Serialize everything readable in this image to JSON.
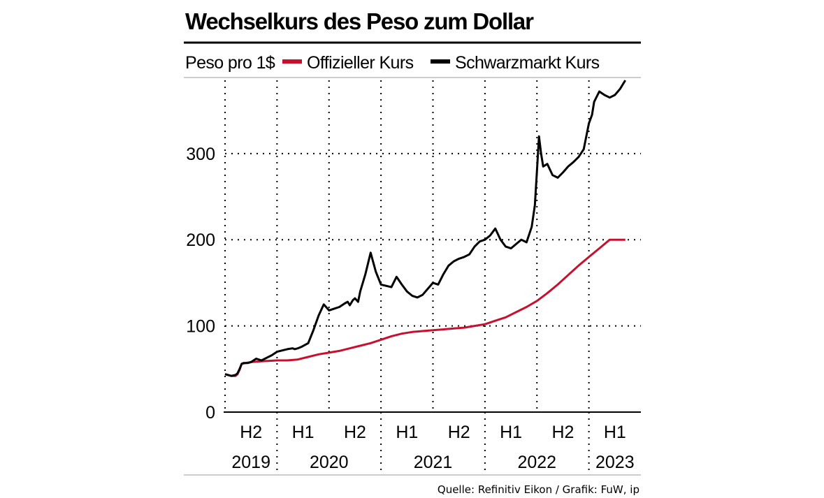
{
  "chart_data": {
    "type": "line",
    "title": "Wechselkurs des Peso zum Dollar",
    "ylabel": "Peso pro 1$",
    "xlabel": "",
    "ylim": [
      0,
      385
    ],
    "yticks": [
      0,
      100,
      200,
      300
    ],
    "xlim": [
      2019.5,
      2023.5
    ],
    "half_year_labels": [
      {
        "label": "H2",
        "x": 2019.75
      },
      {
        "label": "H1",
        "x": 2020.25
      },
      {
        "label": "H2",
        "x": 2020.75
      },
      {
        "label": "H1",
        "x": 2021.25
      },
      {
        "label": "H2",
        "x": 2021.75
      },
      {
        "label": "H1",
        "x": 2022.25
      },
      {
        "label": "H2",
        "x": 2022.75
      },
      {
        "label": "H1",
        "x": 2023.25
      }
    ],
    "year_labels": [
      {
        "label": "2019",
        "x": 2019.75
      },
      {
        "label": "2020",
        "x": 2020.5
      },
      {
        "label": "2021",
        "x": 2021.5
      },
      {
        "label": "2022",
        "x": 2022.5
      },
      {
        "label": "2023",
        "x": 2023.25
      }
    ],
    "year_boundaries": [
      2020.0,
      2021.0,
      2022.0,
      2023.0
    ],
    "legend_position": "top",
    "series": [
      {
        "name": "Offizieller Kurs",
        "color": "#c8102e",
        "x": [
          2019.5,
          2019.56,
          2019.6,
          2019.62,
          2019.64,
          2019.66,
          2019.7,
          2019.75,
          2019.85,
          2020.0,
          2020.1,
          2020.2,
          2020.3,
          2020.4,
          2020.5,
          2020.6,
          2020.7,
          2020.8,
          2020.9,
          2021.0,
          2021.1,
          2021.2,
          2021.3,
          2021.4,
          2021.5,
          2021.6,
          2021.7,
          2021.8,
          2021.9,
          2022.0,
          2022.1,
          2022.2,
          2022.3,
          2022.4,
          2022.5,
          2022.6,
          2022.7,
          2022.8,
          2022.9,
          2023.0,
          2023.1,
          2023.2,
          2023.3,
          2023.35
        ],
        "values": [
          44,
          42,
          42,
          44,
          49,
          56,
          57,
          58,
          59,
          60,
          60,
          61,
          64,
          67,
          69,
          71,
          74,
          77,
          80,
          84,
          88,
          91,
          93,
          94,
          95,
          96,
          97,
          98,
          100,
          102,
          106,
          110,
          116,
          122,
          129,
          138,
          148,
          159,
          170,
          180,
          190,
          200,
          200,
          200
        ]
      },
      {
        "name": "Schwarzmarkt Kurs",
        "color": "#000000",
        "x": [
          2019.5,
          2019.56,
          2019.6,
          2019.62,
          2019.64,
          2019.66,
          2019.68,
          2019.72,
          2019.75,
          2019.8,
          2019.85,
          2019.9,
          2019.95,
          2020.0,
          2020.1,
          2020.15,
          2020.17,
          2020.2,
          2020.24,
          2020.3,
          2020.35,
          2020.4,
          2020.45,
          2020.5,
          2020.55,
          2020.6,
          2020.65,
          2020.68,
          2020.7,
          2020.73,
          2020.75,
          2020.78,
          2020.8,
          2020.85,
          2020.9,
          2020.95,
          2021.0,
          2021.1,
          2021.15,
          2021.2,
          2021.25,
          2021.3,
          2021.35,
          2021.4,
          2021.5,
          2021.55,
          2021.6,
          2021.65,
          2021.7,
          2021.75,
          2021.8,
          2021.85,
          2021.9,
          2021.95,
          2022.0,
          2022.05,
          2022.1,
          2022.15,
          2022.2,
          2022.25,
          2022.3,
          2022.35,
          2022.4,
          2022.45,
          2022.48,
          2022.5,
          2022.52,
          2022.54,
          2022.56,
          2022.6,
          2022.65,
          2022.7,
          2022.75,
          2022.8,
          2022.85,
          2022.9,
          2022.95,
          2023.0,
          2023.03,
          2023.05,
          2023.1,
          2023.15,
          2023.2,
          2023.25,
          2023.3,
          2023.35
        ],
        "values": [
          44,
          42,
          43,
          45,
          50,
          56,
          57,
          57,
          58,
          62,
          60,
          63,
          66,
          70,
          73,
          74,
          73,
          74,
          76,
          80,
          95,
          112,
          125,
          118,
          120,
          122,
          126,
          128,
          124,
          130,
          132,
          128,
          140,
          160,
          185,
          163,
          148,
          145,
          157,
          148,
          140,
          135,
          133,
          136,
          150,
          148,
          160,
          170,
          175,
          178,
          180,
          183,
          192,
          198,
          200,
          205,
          213,
          200,
          192,
          190,
          195,
          200,
          197,
          215,
          240,
          280,
          320,
          300,
          285,
          288,
          275,
          272,
          278,
          285,
          290,
          296,
          305,
          335,
          345,
          360,
          372,
          368,
          365,
          368,
          375,
          385
        ]
      }
    ],
    "source": "Quelle: Refinitiv Eikon / Grafik: FuW, ip"
  }
}
